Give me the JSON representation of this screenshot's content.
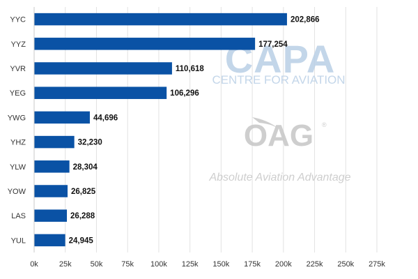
{
  "chart_data": {
    "type": "bar",
    "orientation": "horizontal",
    "categories": [
      "YYC",
      "YYZ",
      "YVR",
      "YEG",
      "YWG",
      "YHZ",
      "YLW",
      "YOW",
      "LAS",
      "YUL"
    ],
    "values": [
      202866,
      177254,
      110618,
      106296,
      44696,
      32230,
      28304,
      26825,
      26288,
      24945
    ],
    "value_labels": [
      "202,866",
      "177,254",
      "110,618",
      "106,296",
      "44,696",
      "32,230",
      "28,304",
      "26,825",
      "26,288",
      "24,945"
    ],
    "x_ticks": [
      0,
      25000,
      50000,
      75000,
      100000,
      125000,
      150000,
      175000,
      200000,
      225000,
      250000,
      275000
    ],
    "x_tick_labels": [
      "0k",
      "25k",
      "50k",
      "75k",
      "100k",
      "125k",
      "150k",
      "175k",
      "200k",
      "225k",
      "250k",
      "275k"
    ],
    "xlim": [
      0,
      275000
    ],
    "grid": "vertical",
    "bar_color": "#0a52a5",
    "title": "",
    "xlabel": "",
    "ylabel": ""
  },
  "watermark": {
    "capa_logo": "CAPA",
    "capa_tagline": "CENTRE FOR AVIATION",
    "oag_logo": "OAG",
    "oag_tagline": "Absolute Aviation Advantage",
    "capa_color": "#b9cfe6",
    "oag_color": "#c9c9c9"
  }
}
